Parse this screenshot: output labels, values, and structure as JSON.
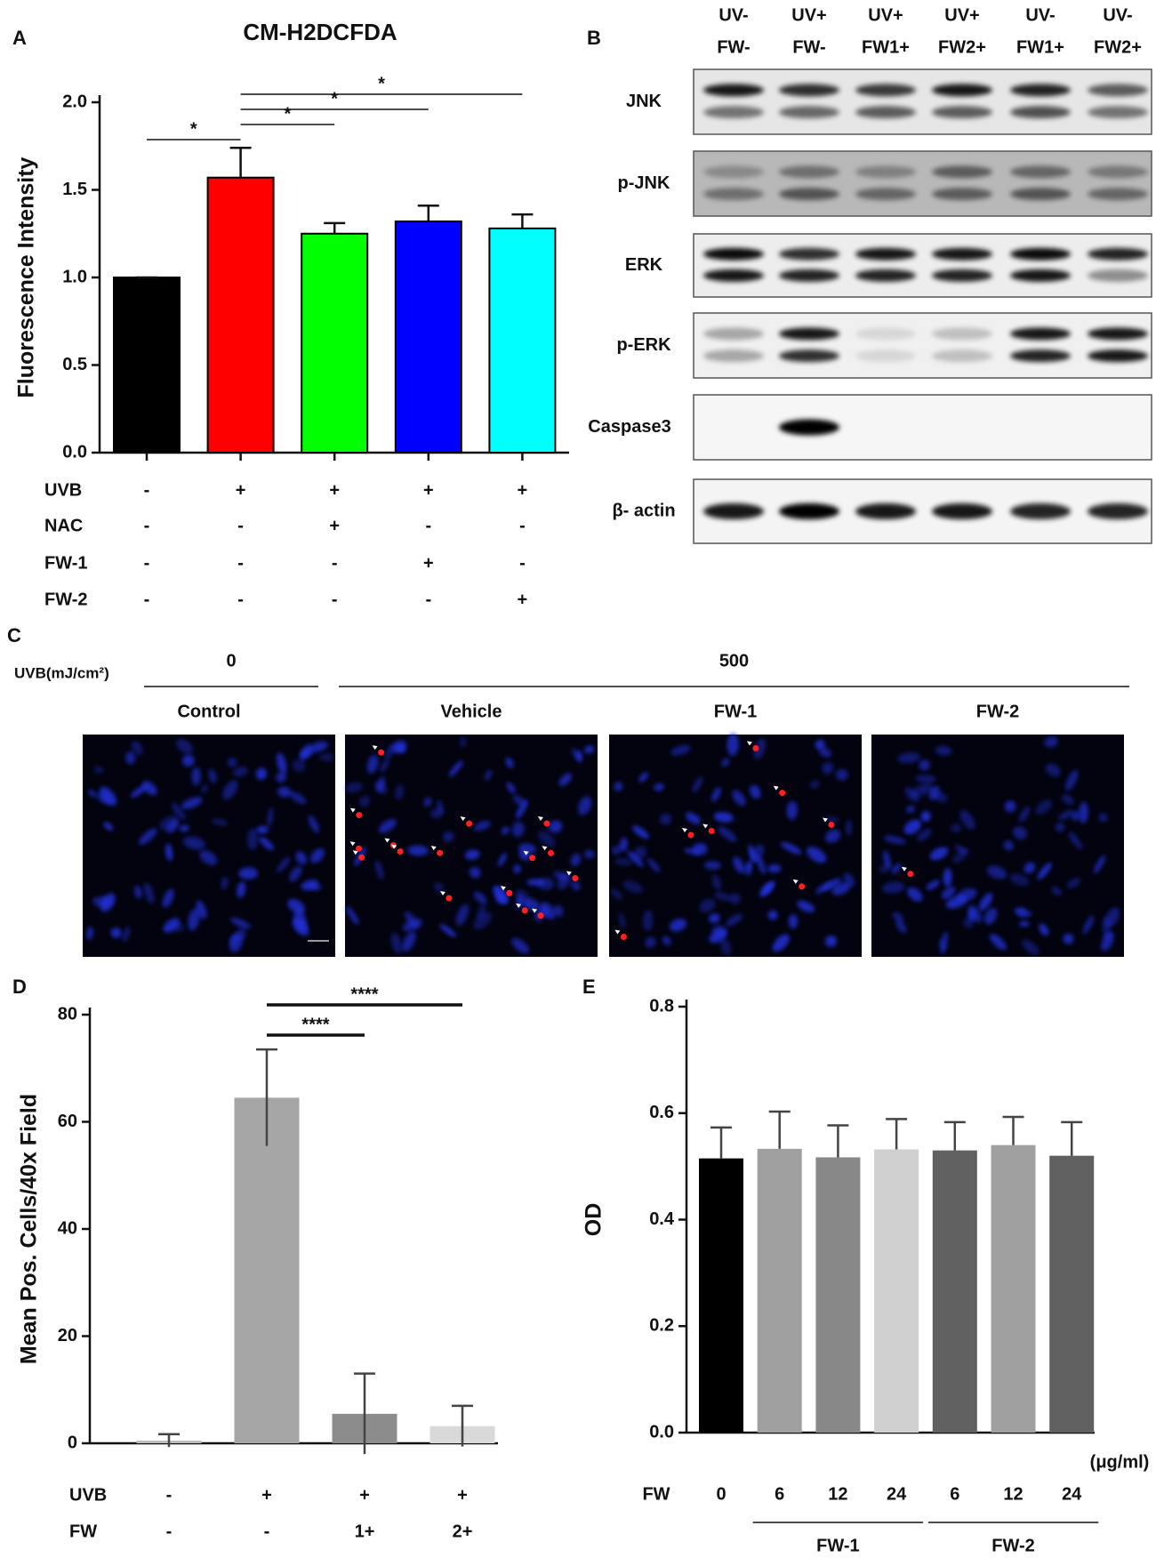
{
  "chart_data": [
    {
      "panel": "A",
      "type": "bar",
      "title": "CM-H2DCFDA",
      "y_label": "Fluorescence Intensity",
      "values": [
        1.0,
        1.57,
        1.25,
        1.32,
        1.28
      ],
      "errors": [
        0,
        0.17,
        0.06,
        0.09,
        0.08
      ],
      "error_bars": "up",
      "colors": [
        "#000000",
        "#ff0000",
        "#00ff00",
        "#0000ff",
        "#00ffff"
      ],
      "outline": "#000000",
      "ylim": [
        0,
        2.0
      ],
      "yticks": [
        {
          "value": 0,
          "label": "0.0"
        },
        0.5,
        {
          "value": 1,
          "label": "1.0"
        },
        1.5,
        {
          "value": 2,
          "label": "2.0"
        }
      ],
      "significance": [
        {
          "label": "*",
          "between": [
            0,
            1
          ]
        },
        {
          "label": "*",
          "between": [
            1,
            2
          ]
        },
        {
          "label": "*",
          "between": [
            1,
            3
          ]
        },
        {
          "label": "*",
          "between": [
            1,
            4
          ]
        }
      ],
      "treatments": [
        {
          "name": "UVB",
          "values": [
            "-",
            "+",
            "+",
            "+",
            "+"
          ]
        },
        {
          "name": "NAC",
          "values": [
            "-",
            "-",
            "+",
            "-",
            "-"
          ]
        },
        {
          "name": "FW-1",
          "values": [
            "-",
            "-",
            "-",
            "+",
            "-"
          ]
        },
        {
          "name": "FW-2",
          "values": [
            "-",
            "-",
            "-",
            "-",
            "+"
          ]
        }
      ]
    },
    {
      "panel": "D",
      "type": "bar",
      "y_label": "Mean Pos. Cells/40x Field",
      "values": [
        0.5,
        64.5,
        5.5,
        3.2
      ],
      "errors": [
        1.2,
        9,
        7.5,
        3.8
      ],
      "error_bars": "both",
      "colors": [
        "#bdbdbd",
        "#a6a6a6",
        "#8c8c8c",
        "#d9d9d9"
      ],
      "ylim": [
        0,
        80
      ],
      "yticks": [
        0,
        20,
        40,
        60,
        80
      ],
      "significance": [
        {
          "label": "****",
          "between": [
            1,
            2
          ]
        },
        {
          "label": "****",
          "between": [
            1,
            3
          ]
        }
      ],
      "treatments": [
        {
          "name": "UVB",
          "values": [
            "-",
            "+",
            "+",
            "+"
          ]
        },
        {
          "name": "FW",
          "values": [
            "-",
            "-",
            "1+",
            "2+"
          ]
        }
      ]
    },
    {
      "panel": "E",
      "type": "bar",
      "y_label": "OD",
      "unit": "(μg/ml)",
      "x_row_label": "FW",
      "categories": [
        "0",
        "6",
        "12",
        "24",
        "6",
        "12",
        "24"
      ],
      "values": [
        0.515,
        0.533,
        0.517,
        0.532,
        0.53,
        0.54,
        0.52
      ],
      "errors": [
        0.058,
        0.07,
        0.06,
        0.057,
        0.053,
        0.053,
        0.063
      ],
      "error_bars": "up",
      "colors": [
        "#000000",
        "#a0a0a0",
        "#888888",
        "#d0d0d0",
        "#606060",
        "#a0a0a0",
        "#606060"
      ],
      "ylim": [
        0,
        0.8
      ],
      "yticks": [
        {
          "value": 0,
          "label": "0.0"
        },
        0.2,
        0.4,
        0.6,
        0.8
      ],
      "groups": [
        {
          "label": "FW-1",
          "span": [
            1,
            3
          ]
        },
        {
          "label": "FW-2",
          "span": [
            4,
            6
          ]
        }
      ]
    }
  ],
  "blot": {
    "panel": "B",
    "lanes": [
      [
        "UV-",
        "FW-"
      ],
      [
        "UV+",
        "FW-"
      ],
      [
        "UV+",
        "FW1+"
      ],
      [
        "UV+",
        "FW2+"
      ],
      [
        "UV-",
        "FW1+"
      ],
      [
        "UV-",
        "FW2+"
      ]
    ],
    "rows": [
      "JNK",
      "p-JNK",
      "ERK",
      "p-ERK",
      "Caspase3",
      "β- actin"
    ]
  },
  "micrograph": {
    "panel": "C",
    "axis_label": "UVB(mJ/cm²)",
    "doses": [
      "0",
      "500"
    ],
    "images": [
      "Control",
      "Vehicle",
      "FW-1",
      "FW-2"
    ]
  }
}
